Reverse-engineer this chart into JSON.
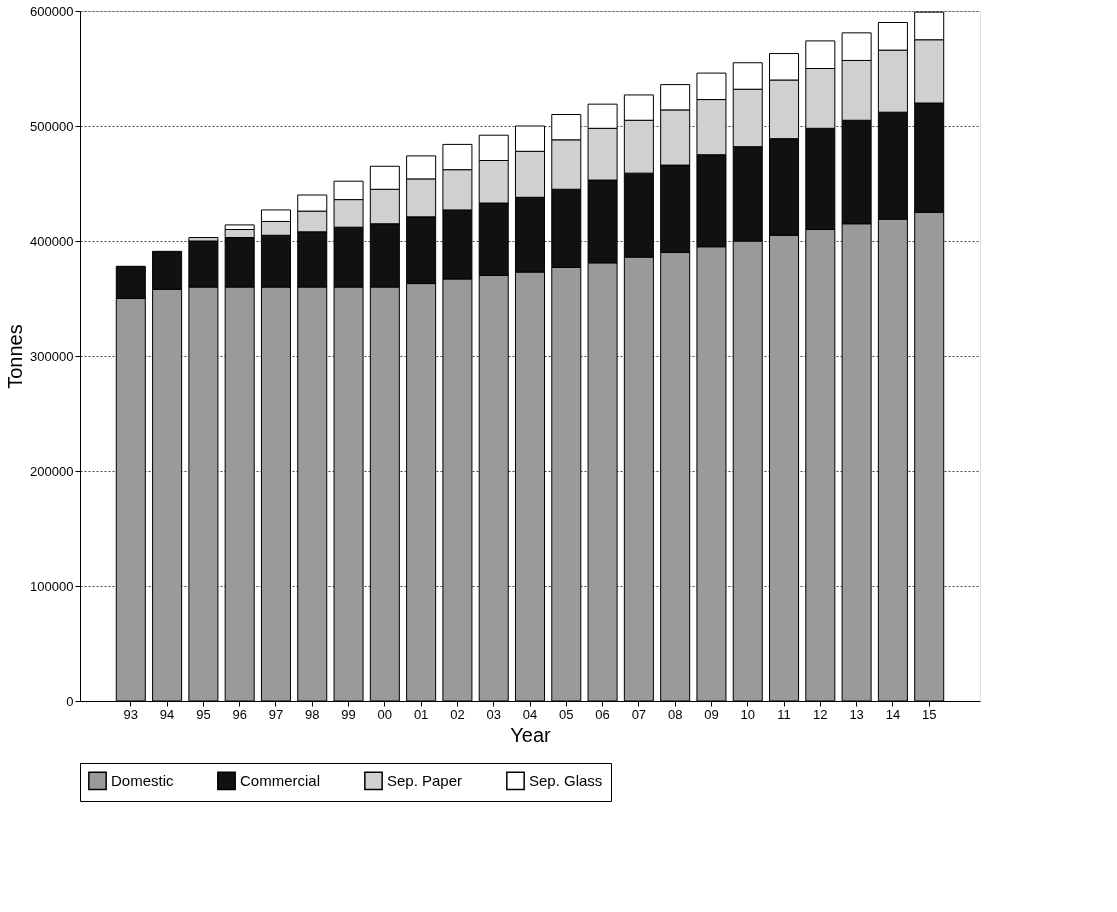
{
  "chart_data": {
    "type": "bar",
    "stacked": true,
    "xlabel": "Year",
    "ylabel": "Tonnes",
    "categories": [
      "93",
      "94",
      "95",
      "96",
      "97",
      "98",
      "99",
      "00",
      "01",
      "02",
      "03",
      "04",
      "05",
      "06",
      "07",
      "08",
      "09",
      "10",
      "11",
      "12",
      "13",
      "14",
      "15"
    ],
    "series": [
      {
        "name": "Domestic",
        "color": "#9a9a9a",
        "values": [
          350000,
          358000,
          360000,
          360000,
          360000,
          360000,
          360000,
          360000,
          363000,
          367000,
          370000,
          373000,
          377000,
          381000,
          386000,
          390000,
          395000,
          400000,
          405000,
          410000,
          415000,
          419000,
          425000
        ]
      },
      {
        "name": "Commercial",
        "color": "#111111",
        "values": [
          28000,
          33000,
          40000,
          43000,
          45000,
          48000,
          52000,
          55000,
          58000,
          60000,
          63000,
          65000,
          68000,
          72000,
          73000,
          76000,
          80000,
          82000,
          84000,
          88000,
          90000,
          93000,
          95000
        ]
      },
      {
        "name": "Sep. Paper",
        "color": "#d0d0d0",
        "values": [
          null,
          null,
          3000,
          7000,
          12000,
          18000,
          24000,
          30000,
          33000,
          35000,
          37000,
          40000,
          43000,
          45000,
          46000,
          48000,
          48000,
          50000,
          51000,
          52000,
          52000,
          54000,
          55000
        ]
      },
      {
        "name": "Sep. Glass",
        "color": "#ffffff",
        "values": [
          null,
          null,
          null,
          4000,
          10000,
          14000,
          16000,
          20000,
          20000,
          22000,
          22000,
          22000,
          22000,
          21000,
          22000,
          22000,
          23000,
          23000,
          23000,
          24000,
          24000,
          24000,
          24000
        ]
      }
    ],
    "ylim": [
      0,
      600000
    ],
    "yticks": [
      0,
      100000,
      200000,
      300000,
      400000,
      500000,
      600000
    ],
    "grid": "y",
    "legend": "bottom"
  }
}
